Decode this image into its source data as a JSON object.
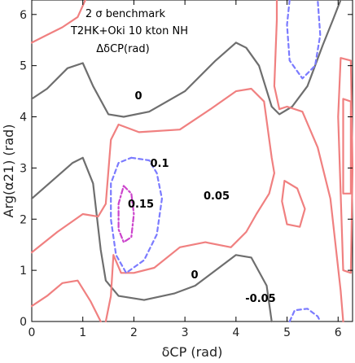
{
  "chart_data": {
    "type": "contour",
    "title": "",
    "xlabel": "δCP  (rad)",
    "ylabel": "Arg(α21)  (rad)",
    "xlim": [
      0,
      6.283
    ],
    "ylim": [
      0,
      6.283
    ],
    "xticks": [
      "0",
      "1",
      "2",
      "3",
      "4",
      "5",
      "6"
    ],
    "yticks": [
      "0",
      "1",
      "2",
      "3",
      "4",
      "5",
      "6"
    ],
    "annotations": [
      "2 σ benchmark",
      "T2HK+Oki 10 kton NH",
      "ΔδCP(rad)"
    ],
    "contour_labels": {
      "zero_upper": "0",
      "zero_lower": "0",
      "p005": "0.05",
      "p01": "0.1",
      "p015": "0.15",
      "m005": "-0.05"
    },
    "levels": [
      {
        "value": -0.05,
        "color": "#f08080",
        "style": "solid"
      },
      {
        "value": 0,
        "color": "#6e6e6e",
        "style": "solid"
      },
      {
        "value": 0.05,
        "color": "#f08080",
        "style": "solid"
      },
      {
        "value": 0.1,
        "color": "#7b7bff",
        "style": "dashed"
      },
      {
        "value": 0.15,
        "color": "#cc44cc",
        "style": "dashdot"
      }
    ],
    "contours": [
      {
        "level": 0,
        "points": [
          [
            0,
            4.35
          ],
          [
            0.3,
            4.55
          ],
          [
            0.7,
            4.95
          ],
          [
            1.0,
            5.05
          ],
          [
            1.2,
            4.6
          ],
          [
            1.5,
            4.05
          ],
          [
            1.8,
            4.0
          ],
          [
            2.3,
            4.1
          ],
          [
            3.0,
            4.5
          ],
          [
            3.6,
            5.1
          ],
          [
            4.0,
            5.45
          ],
          [
            4.2,
            5.35
          ],
          [
            4.45,
            5.0
          ],
          [
            4.7,
            4.2
          ],
          [
            4.85,
            4.05
          ],
          [
            5.1,
            4.2
          ],
          [
            5.4,
            4.6
          ],
          [
            5.7,
            5.4
          ],
          [
            5.9,
            5.9
          ],
          [
            6.05,
            6.283
          ]
        ]
      },
      {
        "level": 0,
        "points": [
          [
            0,
            2.4
          ],
          [
            0.4,
            2.75
          ],
          [
            0.8,
            3.1
          ],
          [
            1.0,
            3.2
          ],
          [
            1.2,
            2.7
          ],
          [
            1.35,
            1.4
          ],
          [
            1.45,
            0.8
          ],
          [
            1.7,
            0.5
          ],
          [
            2.2,
            0.42
          ],
          [
            2.8,
            0.55
          ],
          [
            3.2,
            0.7
          ],
          [
            3.6,
            1.0
          ],
          [
            4.0,
            1.3
          ],
          [
            4.3,
            1.25
          ],
          [
            4.6,
            0.7
          ],
          [
            4.7,
            0.0
          ]
        ]
      },
      {
        "level": 0.05,
        "points": [
          [
            0,
            5.45
          ],
          [
            0.3,
            5.6
          ],
          [
            0.6,
            5.75
          ],
          [
            0.9,
            5.95
          ],
          [
            1.05,
            6.283
          ]
        ]
      },
      {
        "level": 0.05,
        "points": [
          [
            0,
            1.35
          ],
          [
            0.5,
            1.75
          ],
          [
            1.0,
            2.1
          ],
          [
            1.3,
            2.05
          ],
          [
            1.45,
            2.3
          ],
          [
            1.55,
            3.55
          ],
          [
            1.7,
            3.85
          ],
          [
            2.1,
            3.7
          ],
          [
            2.9,
            3.75
          ],
          [
            3.5,
            4.15
          ],
          [
            4.0,
            4.5
          ],
          [
            4.3,
            4.55
          ],
          [
            4.55,
            4.3
          ],
          [
            4.7,
            3.2
          ],
          [
            4.75,
            2.9
          ],
          [
            4.65,
            2.5
          ],
          [
            4.4,
            2.1
          ],
          [
            4.2,
            1.75
          ],
          [
            3.9,
            1.45
          ],
          [
            3.4,
            1.55
          ],
          [
            2.9,
            1.45
          ],
          [
            2.4,
            1.05
          ],
          [
            2.0,
            0.95
          ],
          [
            1.75,
            0.95
          ],
          [
            1.6,
            1.3
          ],
          [
            1.55,
            0.5
          ],
          [
            1.45,
            0.0
          ]
        ]
      },
      {
        "level": 0.05,
        "points": [
          [
            0,
            0.3
          ],
          [
            0.3,
            0.5
          ],
          [
            0.6,
            0.75
          ],
          [
            0.9,
            0.8
          ],
          [
            1.15,
            0.4
          ],
          [
            1.35,
            0.0
          ]
        ]
      },
      {
        "level": 0.05,
        "points": [
          [
            4.8,
            6.283
          ],
          [
            4.8,
            5.9
          ],
          [
            4.75,
            4.6
          ],
          [
            4.85,
            4.15
          ],
          [
            5.0,
            4.2
          ],
          [
            5.3,
            4.1
          ],
          [
            5.6,
            3.4
          ],
          [
            5.85,
            2.4
          ],
          [
            5.95,
            1.5
          ],
          [
            6.05,
            0.6
          ],
          [
            6.1,
            0.0
          ]
        ]
      },
      {
        "level": 0.05,
        "points": [
          [
            4.95,
            2.75
          ],
          [
            5.2,
            2.6
          ],
          [
            5.35,
            2.2
          ],
          [
            5.25,
            1.85
          ],
          [
            5.0,
            1.9
          ],
          [
            4.9,
            2.35
          ],
          [
            4.95,
            2.75
          ]
        ]
      },
      {
        "level": 0.05,
        "points": [
          [
            6.05,
            5.15
          ],
          [
            6.25,
            5.1
          ],
          [
            6.283,
            3.0
          ],
          [
            6.25,
            0.95
          ],
          [
            6.1,
            1.0
          ],
          [
            6.05,
            2.5
          ],
          [
            6.0,
            4.0
          ],
          [
            6.05,
            5.15
          ]
        ]
      },
      {
        "level": -0.05,
        "points": [
          [
            6.1,
            4.35
          ],
          [
            6.25,
            4.3
          ],
          [
            6.25,
            2.5
          ],
          [
            6.1,
            2.5
          ],
          [
            6.1,
            4.35
          ]
        ]
      },
      {
        "level": 0.1,
        "points": [
          [
            1.95,
            3.2
          ],
          [
            2.3,
            3.15
          ],
          [
            2.45,
            2.9
          ],
          [
            2.55,
            2.4
          ],
          [
            2.45,
            1.7
          ],
          [
            2.2,
            1.2
          ],
          [
            1.85,
            0.95
          ],
          [
            1.65,
            1.3
          ],
          [
            1.55,
            2.0
          ],
          [
            1.55,
            2.7
          ],
          [
            1.7,
            3.1
          ],
          [
            1.95,
            3.2
          ]
        ]
      },
      {
        "level": 0.1,
        "points": [
          [
            5.05,
            6.283
          ],
          [
            5.0,
            5.8
          ],
          [
            5.05,
            5.1
          ],
          [
            5.3,
            4.75
          ],
          [
            5.55,
            5.0
          ],
          [
            5.65,
            5.6
          ],
          [
            5.6,
            6.283
          ]
        ]
      },
      {
        "level": 0.1,
        "points": [
          [
            5.05,
            0.0
          ],
          [
            5.15,
            0.22
          ],
          [
            5.4,
            0.25
          ],
          [
            5.6,
            0.1
          ],
          [
            5.65,
            0.0
          ]
        ]
      },
      {
        "level": 0.15,
        "points": [
          [
            1.8,
            2.65
          ],
          [
            1.95,
            2.5
          ],
          [
            2.0,
            2.1
          ],
          [
            1.95,
            1.65
          ],
          [
            1.8,
            1.55
          ],
          [
            1.7,
            1.8
          ],
          [
            1.7,
            2.3
          ],
          [
            1.8,
            2.65
          ]
        ]
      }
    ]
  }
}
